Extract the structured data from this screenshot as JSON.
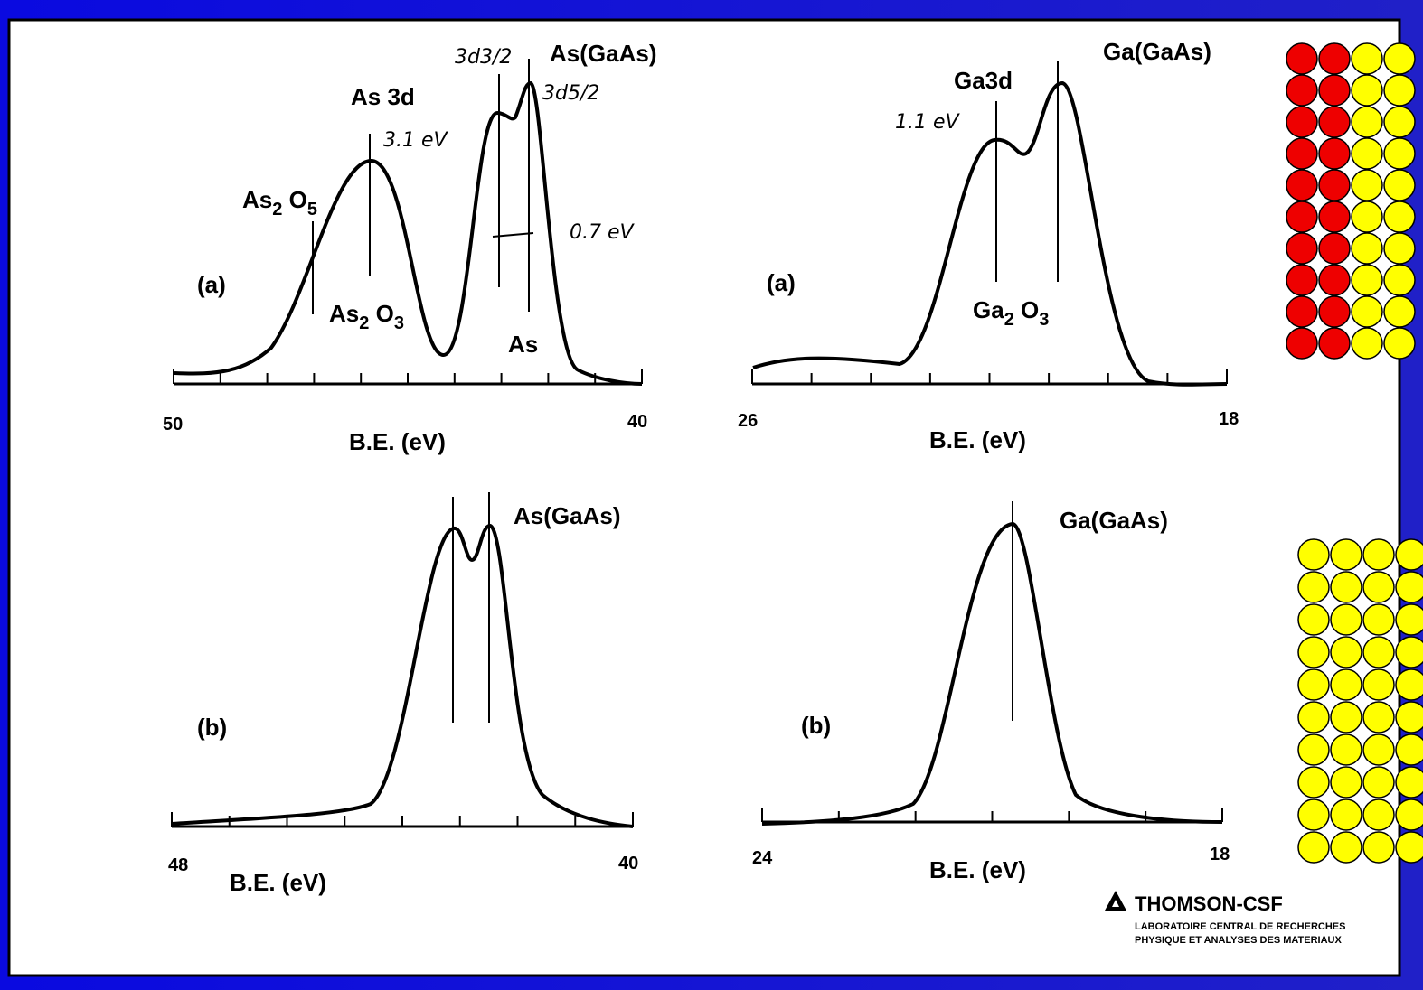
{
  "panels": [
    {
      "label": "(a)",
      "peak": "As 3d",
      "species": "As(GaAs)",
      "x_start": "50",
      "x_end": "40",
      "x_title": "B.E. (eV)",
      "oxide_high": [
        "As",
        "2",
        " O",
        "5"
      ],
      "oxide_low": [
        "As",
        "2",
        " O",
        "3"
      ],
      "element": "As",
      "notes": [
        "3d3/2",
        "3d5/2",
        "3.1 eV",
        "0.7 eV"
      ]
    },
    {
      "label": "(a)",
      "peak": "Ga3d",
      "species": "Ga(GaAs)",
      "x_start": "26",
      "x_end": "18",
      "x_title": "B.E. (eV)",
      "oxide": [
        "Ga",
        "2",
        " O",
        "3"
      ],
      "notes": [
        "1.1 eV"
      ]
    },
    {
      "label": "(b)",
      "species": "As(GaAs)",
      "x_start": "48",
      "x_end": "40",
      "x_title": "B.E. (eV)"
    },
    {
      "label": "(b)",
      "species": "Ga(GaAs)",
      "x_start": "24",
      "x_end": "18",
      "x_title": "B.E. (eV)"
    }
  ],
  "footer": {
    "logo": "THOMSON-CSF",
    "lines": [
      "LABORATOIRE CENTRAL DE RECHERCHES",
      "PHYSIQUE ET ANALYSES DES MATERIAUX"
    ]
  }
}
